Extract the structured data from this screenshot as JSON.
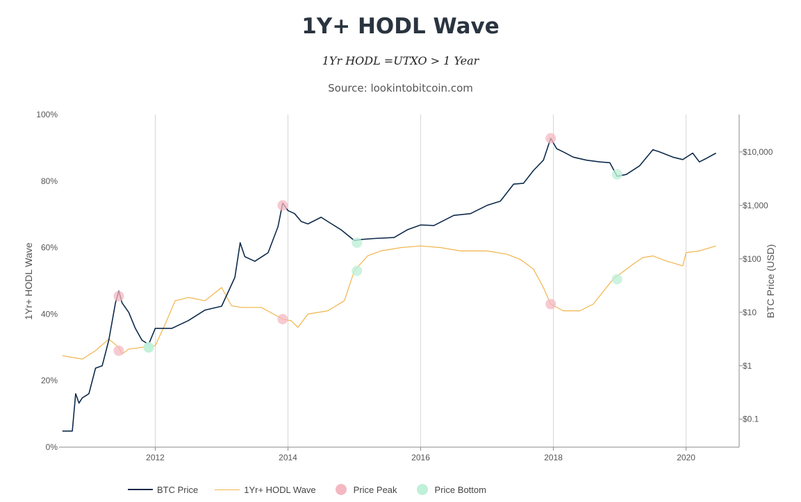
{
  "title": "1Y+ HODL Wave",
  "subtitle": "1Yr HODL =UTXO > 1 Year",
  "source": "Source: lookintobitcoin.com",
  "legend": {
    "btc_price": "BTC Price",
    "hodl_wave": "1Yr+ HODL Wave",
    "price_peak": "Price Peak",
    "price_bottom": "Price Bottom"
  },
  "colors": {
    "btc_price": "#0d2a4a",
    "hodl_wave": "#f0b44a",
    "price_peak": "#f4b8c2",
    "price_bottom": "#bff0d8",
    "grid": "#d6d6d6"
  },
  "chart_data": {
    "type": "line",
    "xlim": [
      2010.55,
      2020.8
    ],
    "x_ticks": [
      2012,
      2014,
      2016,
      2018,
      2020
    ],
    "x_tick_labels": [
      "2012",
      "2014",
      "2016",
      "2018",
      "2020"
    ],
    "y_left": {
      "label": "1Yr+ HODL Wave",
      "range": [
        0,
        100
      ],
      "ticks": [
        0,
        20,
        40,
        60,
        80,
        100
      ],
      "tick_labels": [
        "0%",
        "20%",
        "40%",
        "60%",
        "80%",
        "100%"
      ]
    },
    "y_right": {
      "label": "BTC Price (USD)",
      "scale": "log",
      "range": [
        0.03,
        50000
      ],
      "ticks": [
        0.1,
        1,
        10,
        100,
        1000,
        10000
      ],
      "tick_labels": [
        "$0.1",
        "$1",
        "$10",
        "$100",
        "$1,000",
        "$10,000"
      ]
    },
    "grid": "vertical",
    "legend_position": "bottom",
    "series": [
      {
        "name": "BTC Price",
        "axis": "right",
        "x": [
          2010.6,
          2010.75,
          2010.8,
          2010.85,
          2010.9,
          2011.0,
          2011.1,
          2011.2,
          2011.3,
          2011.4,
          2011.45,
          2011.5,
          2011.6,
          2011.7,
          2011.8,
          2011.9,
          2012.0,
          2012.1,
          2012.25,
          2012.5,
          2012.75,
          2013.0,
          2013.2,
          2013.28,
          2013.35,
          2013.5,
          2013.7,
          2013.85,
          2013.92,
          2014.0,
          2014.1,
          2014.2,
          2014.3,
          2014.5,
          2014.6,
          2014.8,
          2015.0,
          2015.1,
          2015.3,
          2015.6,
          2015.8,
          2016.0,
          2016.2,
          2016.5,
          2016.75,
          2017.0,
          2017.2,
          2017.4,
          2017.55,
          2017.7,
          2017.85,
          2017.96,
          2018.05,
          2018.15,
          2018.3,
          2018.5,
          2018.7,
          2018.85,
          2018.96,
          2019.1,
          2019.3,
          2019.5,
          2019.6,
          2019.8,
          2019.95,
          2020.1,
          2020.2,
          2020.3,
          2020.45
        ],
        "values": [
          0.06,
          0.06,
          0.3,
          0.2,
          0.25,
          0.3,
          0.9,
          1.0,
          3.0,
          15.0,
          25.0,
          15.0,
          10.0,
          5.0,
          3.0,
          2.5,
          5.0,
          5.0,
          5.0,
          7.0,
          11.0,
          13.0,
          45.0,
          200.0,
          110.0,
          90.0,
          130.0,
          400.0,
          1100.0,
          800.0,
          700.0,
          500.0,
          450.0,
          600.0,
          500.0,
          350.0,
          220.0,
          230.0,
          240.0,
          250.0,
          350.0,
          430.0,
          420.0,
          650.0,
          700.0,
          1000.0,
          1200.0,
          2500.0,
          2600.0,
          4500.0,
          7000.0,
          18000.0,
          11500.0,
          10000.0,
          8000.0,
          7000.0,
          6500.0,
          6300.0,
          3500.0,
          3800.0,
          5500.0,
          11000.0,
          10000.0,
          8000.0,
          7200.0,
          9500.0,
          6500.0,
          7500.0,
          9500.0
        ]
      },
      {
        "name": "1Yr+ HODL Wave",
        "axis": "left",
        "x": [
          2010.6,
          2010.9,
          2011.1,
          2011.3,
          2011.45,
          2011.5,
          2011.6,
          2011.8,
          2012.0,
          2012.15,
          2012.3,
          2012.5,
          2012.75,
          2013.0,
          2013.15,
          2013.3,
          2013.6,
          2013.92,
          2014.05,
          2014.15,
          2014.3,
          2014.6,
          2014.85,
          2015.0,
          2015.2,
          2015.4,
          2015.7,
          2016.0,
          2016.3,
          2016.6,
          2017.0,
          2017.3,
          2017.5,
          2017.7,
          2017.85,
          2017.96,
          2018.15,
          2018.4,
          2018.6,
          2018.9,
          2019.2,
          2019.35,
          2019.5,
          2019.7,
          2019.95,
          2020.0,
          2020.2,
          2020.45
        ],
        "values": [
          27.5,
          26.5,
          29.0,
          32.5,
          30.0,
          28.0,
          29.5,
          30.0,
          30.5,
          37.0,
          44.0,
          45.0,
          44.0,
          48.0,
          42.5,
          42.0,
          42.0,
          38.5,
          38.0,
          36.0,
          40.0,
          41.0,
          44.0,
          53.0,
          57.5,
          59.0,
          60.0,
          60.5,
          60.0,
          59.0,
          59.0,
          58.0,
          56.5,
          53.5,
          48.0,
          43.0,
          41.0,
          41.0,
          43.0,
          50.5,
          55.0,
          57.0,
          57.5,
          56.0,
          54.5,
          58.5,
          59.0,
          60.5
        ]
      }
    ],
    "price_peaks": [
      {
        "x": 2011.45,
        "price": 20.0,
        "hodl": 29.0
      },
      {
        "x": 2013.92,
        "price": 1000.0,
        "hodl": 38.5
      },
      {
        "x": 2017.96,
        "price": 18000.0,
        "hodl": 43.0
      }
    ],
    "price_bottoms": [
      {
        "x": 2011.9,
        "price": 2.2,
        "hodl": 30.0
      },
      {
        "x": 2015.04,
        "price": 200.0,
        "hodl": 53.0
      },
      {
        "x": 2018.96,
        "price": 3800.0,
        "hodl": 50.5
      }
    ]
  }
}
